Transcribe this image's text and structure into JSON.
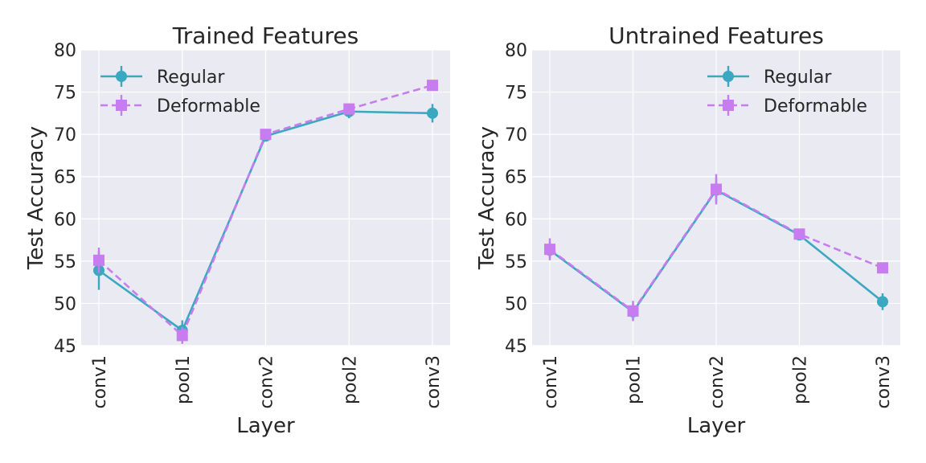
{
  "chart_data": [
    {
      "type": "line",
      "title": "Trained Features",
      "xlabel": "Layer",
      "ylabel": "Test Accuracy",
      "categories": [
        "conv1",
        "pool1",
        "conv2",
        "pool2",
        "conv3"
      ],
      "ylim": [
        45,
        80
      ],
      "yticks": [
        "45",
        "50",
        "55",
        "60",
        "65",
        "70",
        "75",
        "80"
      ],
      "grid": true,
      "legend_position": "top-left",
      "series": [
        {
          "name": "Regular",
          "values": [
            53.9,
            46.8,
            69.8,
            72.7,
            72.5
          ],
          "errors": [
            2.3,
            1.2,
            0.6,
            0.8,
            1.1
          ],
          "color": "#3aa8c1",
          "marker": "circle",
          "line": "solid"
        },
        {
          "name": "Deformable",
          "values": [
            55.1,
            46.2,
            70.0,
            73.0,
            75.8
          ],
          "errors": [
            1.5,
            1.0,
            0.5,
            0.6,
            0.5
          ],
          "color": "#c77cf0",
          "marker": "square",
          "line": "dashed"
        }
      ]
    },
    {
      "type": "line",
      "title": "Untrained Features",
      "xlabel": "Layer",
      "ylabel": "Test Accuracy",
      "categories": [
        "conv1",
        "pool1",
        "conv2",
        "pool2",
        "conv3"
      ],
      "ylim": [
        45,
        80
      ],
      "yticks": [
        "45",
        "50",
        "55",
        "60",
        "65",
        "70",
        "75",
        "80"
      ],
      "grid": true,
      "legend_position": "top-right",
      "series": [
        {
          "name": "Regular",
          "values": [
            56.3,
            49.0,
            63.4,
            58.1,
            50.2
          ],
          "errors": [
            1.0,
            1.0,
            1.5,
            0.5,
            1.0
          ],
          "color": "#3aa8c1",
          "marker": "circle",
          "line": "solid"
        },
        {
          "name": "Deformable",
          "values": [
            56.4,
            49.1,
            63.5,
            58.2,
            54.2
          ],
          "errors": [
            1.3,
            1.2,
            1.8,
            0.5,
            0.6
          ],
          "color": "#c77cf0",
          "marker": "square",
          "line": "dashed"
        }
      ]
    }
  ]
}
